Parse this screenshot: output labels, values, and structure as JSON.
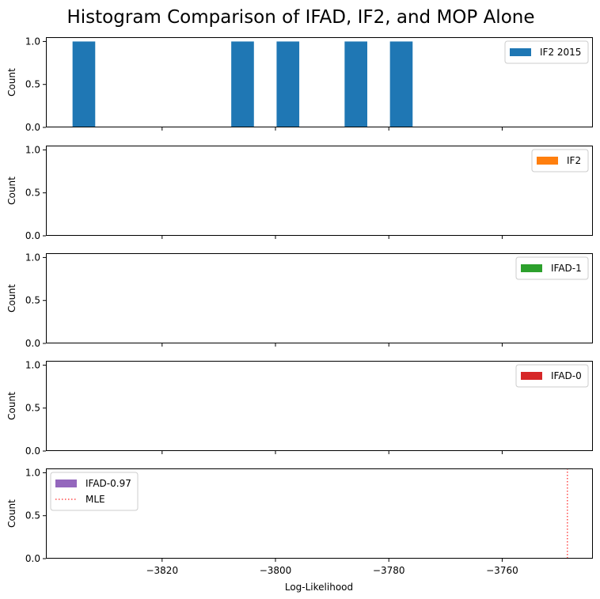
{
  "chart_data": {
    "type": "bar",
    "title": "Histogram Comparison of IFAD, IF2, and MOP Alone",
    "xlabel": "Log-Likelihood",
    "ylabel": "Count",
    "xlim": [
      -3840.5,
      -3744.0
    ],
    "ylim": [
      0,
      1.05
    ],
    "xticks": [
      -3820,
      -3800,
      -3780,
      -3760
    ],
    "xtick_labels": [
      "−3820",
      "−3800",
      "−3780",
      "−3760"
    ],
    "yticks": [
      0.0,
      0.5,
      1.0
    ],
    "ytick_labels": [
      "0.0",
      "0.5",
      "1.0"
    ],
    "shared_x": true,
    "panels": [
      {
        "legend": [
          "IF2 2015"
        ],
        "legend_position": "upper right",
        "series": [
          {
            "name": "IF2 2015",
            "color": "#1f77b4",
            "bins": [
              {
                "x0": -3835.8,
                "x1": -3831.8,
                "count": 1
              },
              {
                "x0": -3807.8,
                "x1": -3803.8,
                "count": 1
              },
              {
                "x0": -3799.8,
                "x1": -3795.8,
                "count": 1
              },
              {
                "x0": -3787.8,
                "x1": -3783.8,
                "count": 1
              },
              {
                "x0": -3779.8,
                "x1": -3775.8,
                "count": 1
              }
            ]
          }
        ]
      },
      {
        "legend": [
          "IF2"
        ],
        "legend_position": "upper right",
        "series": [
          {
            "name": "IF2",
            "color": "#ff7f0e",
            "bins": []
          }
        ]
      },
      {
        "legend": [
          "IFAD-1"
        ],
        "legend_position": "upper right",
        "series": [
          {
            "name": "IFAD-1",
            "color": "#2ca02c",
            "bins": []
          }
        ]
      },
      {
        "legend": [
          "IFAD-0"
        ],
        "legend_position": "upper right",
        "series": [
          {
            "name": "IFAD-0",
            "color": "#d62728",
            "bins": []
          }
        ]
      },
      {
        "legend": [
          "IFAD-0.97",
          "MLE"
        ],
        "legend_position": "upper left",
        "series": [
          {
            "name": "IFAD-0.97",
            "color": "#9467bd",
            "bins": []
          }
        ],
        "vlines": [
          {
            "name": "MLE",
            "x": -3748.5,
            "color": "#ff0000",
            "style": "dotted"
          }
        ]
      }
    ]
  }
}
